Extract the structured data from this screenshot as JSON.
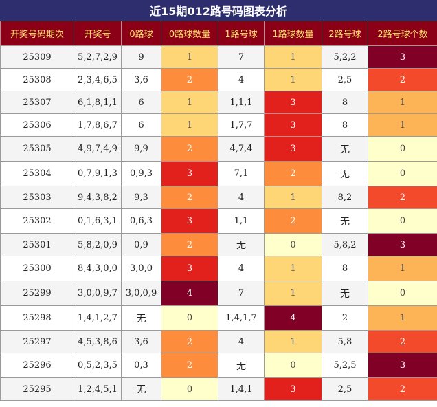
{
  "title": "近15期012路号码图表分析",
  "headers": [
    "开奖号码期次",
    "开奖号",
    "0路球",
    "0路球数量",
    "1路号球",
    "1路球数量",
    "2路号球",
    "2路号球个数"
  ],
  "rows": [
    [
      "25309",
      "5,2,7,2,9",
      "9",
      "1",
      "7",
      "1",
      "5,2,2",
      "3"
    ],
    [
      "25308",
      "2,3,4,6,5",
      "3,6",
      "2",
      "4",
      "1",
      "2,5",
      "2"
    ],
    [
      "25307",
      "6,1,8,1,1",
      "6",
      "1",
      "1,1,1",
      "3",
      "8",
      "1"
    ],
    [
      "25306",
      "1,7,8,6,7",
      "6",
      "1",
      "1,7,7",
      "3",
      "8",
      "1"
    ],
    [
      "25305",
      "4,9,7,4,9",
      "9,9",
      "2",
      "4,7,4",
      "3",
      "无",
      "0"
    ],
    [
      "25304",
      "0,7,9,1,3",
      "0,9,3",
      "3",
      "7,1",
      "2",
      "无",
      "0"
    ],
    [
      "25303",
      "9,4,3,8,2",
      "9,3",
      "2",
      "4",
      "1",
      "8,2",
      "2"
    ],
    [
      "25302",
      "0,1,6,3,1",
      "0,6,3",
      "3",
      "1,1",
      "2",
      "无",
      "0"
    ],
    [
      "25301",
      "5,8,2,0,9",
      "0,9",
      "2",
      "无",
      "0",
      "5,8,2",
      "3"
    ],
    [
      "25300",
      "8,4,3,0,0",
      "3,0,0",
      "3",
      "4",
      "1",
      "8",
      "1"
    ],
    [
      "25299",
      "3,0,0,9,7",
      "3,0,0,9",
      "4",
      "7",
      "1",
      "无",
      "0"
    ],
    [
      "25298",
      "1,4,1,2,7",
      "无",
      "0",
      "1,4,1,7",
      "4",
      "2",
      "1"
    ],
    [
      "25297",
      "4,5,3,8,6",
      "3,6",
      "2",
      "4",
      "1",
      "5,8",
      "2"
    ],
    [
      "25296",
      "0,5,2,3,5",
      "0,3",
      "2",
      "无",
      "0",
      "5,2,5",
      "3"
    ],
    [
      "25295",
      "1,2,4,5,1",
      "无",
      "0",
      "1,4,1",
      "3",
      "2,5",
      "2"
    ]
  ]
}
